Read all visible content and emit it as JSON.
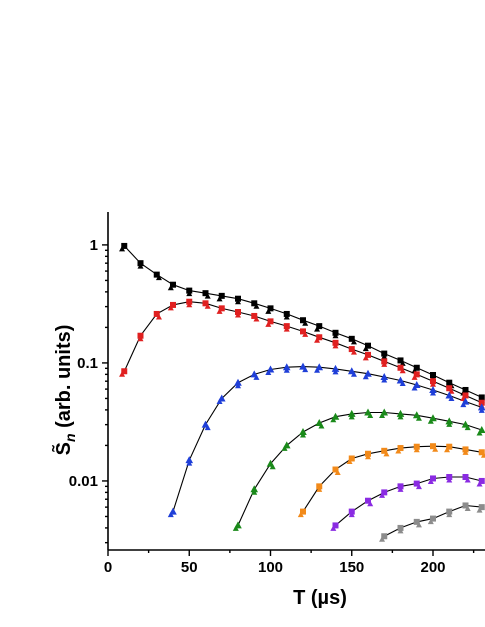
{
  "chart_data": {
    "type": "scatter",
    "title": "",
    "xlabel": "T (µs)",
    "ylabel": "S̃n (arb. units)",
    "ylabel_main": "S̃",
    "ylabel_sub": "n",
    "ylabel_rest": " (arb. units)",
    "xlim": [
      0,
      232
    ],
    "ylim": [
      0.0026,
      1.9
    ],
    "yscale": "log",
    "xticks": [
      0,
      50,
      100,
      150,
      200
    ],
    "xtick_labels": [
      "0",
      "50",
      "100",
      "150",
      "200"
    ],
    "yticks": [
      1,
      0.1,
      0.01
    ],
    "ytick_labels": [
      "1",
      "0.1",
      "0.01"
    ],
    "grid": false,
    "legend": "none",
    "series": [
      {
        "color": "#000000",
        "marker": "square",
        "x": [
          10,
          20,
          30,
          40,
          50,
          60,
          70,
          80,
          90,
          100,
          110,
          120,
          130,
          140,
          150,
          160,
          170,
          180,
          190,
          200,
          210,
          220,
          230
        ],
        "y": [
          0.98,
          0.7,
          0.56,
          0.46,
          0.41,
          0.39,
          0.37,
          0.35,
          0.32,
          0.29,
          0.26,
          0.23,
          0.205,
          0.18,
          0.16,
          0.14,
          0.12,
          0.105,
          0.091,
          0.079,
          0.068,
          0.059,
          0.051
        ]
      },
      {
        "color": "#e02020",
        "marker": "square",
        "x": [
          10,
          20,
          30,
          40,
          50,
          60,
          70,
          80,
          90,
          100,
          110,
          120,
          130,
          140,
          150,
          160,
          170,
          180,
          190,
          200,
          210,
          220,
          230
        ],
        "y": [
          0.085,
          0.17,
          0.26,
          0.31,
          0.33,
          0.32,
          0.29,
          0.27,
          0.25,
          0.225,
          0.205,
          0.185,
          0.165,
          0.148,
          0.131,
          0.117,
          0.103,
          0.091,
          0.08,
          0.07,
          0.061,
          0.053,
          0.046
        ]
      },
      {
        "color": "#1f3fd8",
        "marker": "triangle",
        "x": [
          40,
          50,
          60,
          70,
          80,
          90,
          100,
          110,
          120,
          130,
          140,
          150,
          160,
          170,
          180,
          190,
          200,
          210,
          220,
          230
        ],
        "y": [
          0.0055,
          0.015,
          0.03,
          0.05,
          0.068,
          0.08,
          0.088,
          0.092,
          0.093,
          0.092,
          0.089,
          0.085,
          0.081,
          0.076,
          0.071,
          0.065,
          0.059,
          0.053,
          0.047,
          0.042
        ]
      },
      {
        "color": "#1a8a1a",
        "marker": "triangle",
        "x": [
          80,
          90,
          100,
          110,
          120,
          130,
          140,
          150,
          160,
          170,
          180,
          190,
          200,
          210,
          220,
          230
        ],
        "y": [
          0.0042,
          0.0085,
          0.014,
          0.02,
          0.026,
          0.031,
          0.035,
          0.037,
          0.038,
          0.038,
          0.037,
          0.036,
          0.034,
          0.032,
          0.03,
          0.027
        ]
      },
      {
        "color": "#f28a1a",
        "marker": "square",
        "x": [
          120,
          130,
          140,
          150,
          160,
          170,
          180,
          190,
          200,
          210,
          220,
          230
        ],
        "y": [
          0.0055,
          0.009,
          0.0125,
          0.0155,
          0.017,
          0.018,
          0.019,
          0.0195,
          0.0197,
          0.0195,
          0.0185,
          0.0175
        ]
      },
      {
        "color": "#8a2be2",
        "marker": "square",
        "x": [
          140,
          150,
          160,
          170,
          180,
          190,
          200,
          210,
          220,
          230
        ],
        "y": [
          0.0042,
          0.0055,
          0.0068,
          0.008,
          0.009,
          0.0095,
          0.0105,
          0.0108,
          0.0108,
          0.01
        ]
      },
      {
        "color": "#8c8c8c",
        "marker": "square",
        "x": [
          170,
          180,
          190,
          200,
          210,
          220,
          230
        ],
        "y": [
          0.0034,
          0.004,
          0.0045,
          0.0048,
          0.0055,
          0.0062,
          0.006
        ]
      }
    ]
  }
}
